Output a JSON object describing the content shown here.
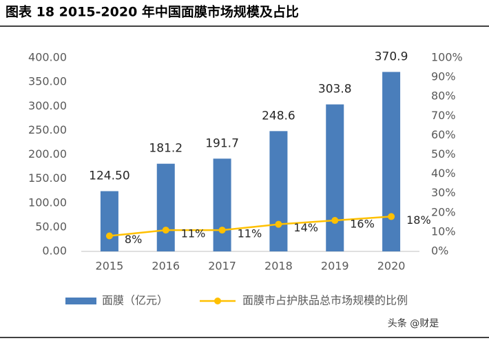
{
  "chart_data": {
    "type": "combo",
    "title": "图表 18 2015-2020 年中国面膜市场规模及占比",
    "categories": [
      "2015",
      "2016",
      "2017",
      "2018",
      "2019",
      "2020"
    ],
    "series": [
      {
        "name": "面膜（亿元）",
        "type": "bar",
        "color": "#4a7ebb",
        "values": [
          124.5,
          181.2,
          191.7,
          248.6,
          303.8,
          370.9
        ],
        "value_labels": [
          "124.50",
          "181.2",
          "191.7",
          "248.6",
          "303.8",
          "370.9"
        ]
      },
      {
        "name": "面膜市占护肤品总市场规模的比例",
        "type": "line",
        "axis": "y2",
        "color": "#ffc000",
        "values": [
          8,
          11,
          11,
          14,
          16,
          18
        ],
        "value_labels": [
          "8%",
          "11%",
          "11%",
          "14%",
          "16%",
          "18%"
        ]
      }
    ],
    "ylim": [
      0,
      400
    ],
    "yticks": [
      {
        "value": 0,
        "label": "0.00"
      },
      {
        "value": 50,
        "label": "50.00"
      },
      {
        "value": 100,
        "label": "100.00"
      },
      {
        "value": 150,
        "label": "150.00"
      },
      {
        "value": 200,
        "label": "200.00"
      },
      {
        "value": 250,
        "label": "250.00"
      },
      {
        "value": 300,
        "label": "300.00"
      },
      {
        "value": 350,
        "label": "350.00"
      },
      {
        "value": 400,
        "label": "400.00"
      }
    ],
    "y2lim": [
      0,
      100
    ],
    "y2ticks": [
      {
        "value": 0,
        "label": "0%"
      },
      {
        "value": 10,
        "label": "10%"
      },
      {
        "value": 20,
        "label": "20%"
      },
      {
        "value": 30,
        "label": "30%"
      },
      {
        "value": 40,
        "label": "40%"
      },
      {
        "value": 50,
        "label": "50%"
      },
      {
        "value": 60,
        "label": "60%"
      },
      {
        "value": 70,
        "label": "70%"
      },
      {
        "value": 80,
        "label": "80%"
      },
      {
        "value": 90,
        "label": "90%"
      },
      {
        "value": 100,
        "label": "100%"
      }
    ],
    "grid": false,
    "legend": "bottom",
    "watermark": "头条 @财是"
  }
}
